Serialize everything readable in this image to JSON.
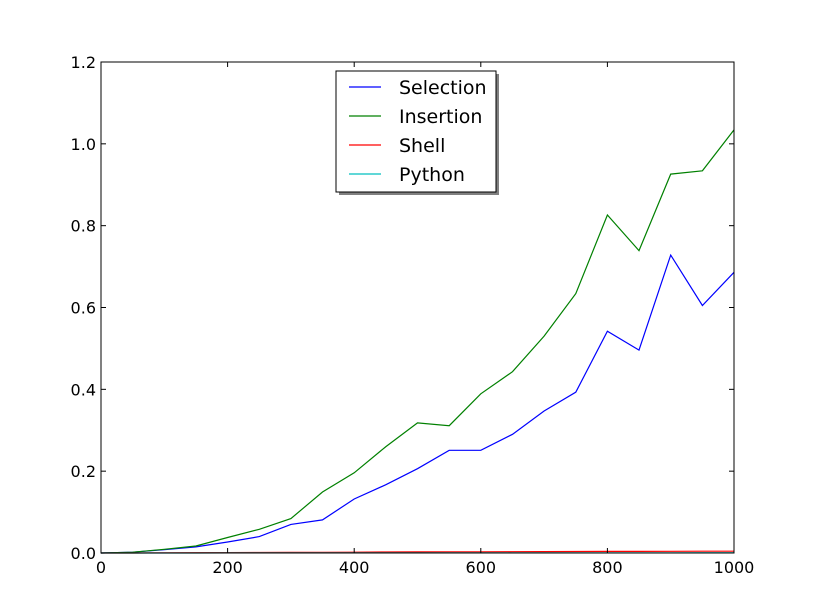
{
  "chart_data": {
    "type": "line",
    "title": "",
    "xlabel": "",
    "ylabel": "",
    "xlim": [
      0,
      1000
    ],
    "ylim": [
      0,
      1.2
    ],
    "grid": false,
    "legend_position": "top-center",
    "x": [
      0,
      50,
      100,
      150,
      200,
      250,
      300,
      350,
      400,
      450,
      500,
      550,
      600,
      650,
      700,
      750,
      800,
      850,
      900,
      950,
      1000
    ],
    "xticks": [
      0,
      200,
      400,
      600,
      800,
      1000
    ],
    "xtick_labels": [
      "0",
      "200",
      "400",
      "600",
      "800",
      "1000"
    ],
    "yticks": [
      0,
      0.2,
      0.4,
      0.6,
      0.8,
      1.0,
      1.2
    ],
    "ytick_labels": [
      "0.0",
      "0.2",
      "0.4",
      "0.6",
      "0.8",
      "1.0",
      "1.2"
    ],
    "series": [
      {
        "name": "Selection",
        "color": "#0000ff",
        "values": [
          0.0,
          0.002,
          0.008,
          0.015,
          0.027,
          0.04,
          0.07,
          0.081,
          0.132,
          0.167,
          0.206,
          0.251,
          0.251,
          0.29,
          0.347,
          0.393,
          0.542,
          0.496,
          0.728,
          0.605,
          0.686
        ]
      },
      {
        "name": "Insertion",
        "color": "#008000",
        "values": [
          0.0,
          0.002,
          0.009,
          0.017,
          0.038,
          0.058,
          0.084,
          0.149,
          0.196,
          0.26,
          0.318,
          0.311,
          0.389,
          0.443,
          0.53,
          0.634,
          0.826,
          0.739,
          0.926,
          0.934,
          1.034
        ]
      },
      {
        "name": "Shell",
        "color": "#ff0000",
        "values": [
          0.0,
          0.0,
          0.0005,
          0.0008,
          0.001,
          0.0012,
          0.0015,
          0.0018,
          0.002,
          0.0025,
          0.0028,
          0.003,
          0.003,
          0.0032,
          0.0035,
          0.0037,
          0.0038,
          0.004,
          0.0042,
          0.0043,
          0.0045
        ]
      },
      {
        "name": "Python",
        "color": "#00bfbf",
        "values": [
          0.0,
          0.0,
          0.0001,
          0.0001,
          0.0002,
          0.0002,
          0.0002,
          0.0003,
          0.0003,
          0.0003,
          0.0004,
          0.0004,
          0.0004,
          0.0005,
          0.0005,
          0.0005,
          0.0006,
          0.0006,
          0.0006,
          0.0007,
          0.0007
        ]
      }
    ]
  }
}
